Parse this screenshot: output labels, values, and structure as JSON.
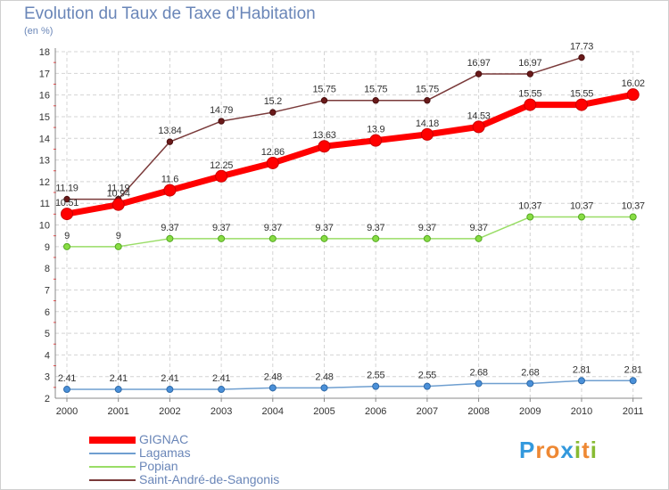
{
  "chart_data": {
    "type": "line",
    "title": "Evolution du Taux de Taxe d’Habitation",
    "subtitle": "(en %)",
    "x": [
      "2000",
      "2001",
      "2002",
      "2003",
      "2004",
      "2005",
      "2006",
      "2007",
      "2008",
      "2009",
      "2010",
      "2011"
    ],
    "ylim": [
      2,
      18
    ],
    "yticks": [
      2,
      3,
      4,
      5,
      6,
      7,
      8,
      9,
      10,
      11,
      12,
      13,
      14,
      15,
      16,
      17,
      18
    ],
    "grid": true,
    "legend_position": "bottom-left",
    "series": [
      {
        "name": "GIGNAC",
        "color": "#ff0000",
        "values": [
          10.51,
          10.94,
          11.6,
          12.25,
          12.86,
          13.63,
          13.9,
          14.18,
          14.53,
          15.55,
          15.55,
          16.02
        ],
        "labels": [
          "10.51",
          "10.94",
          "11.6",
          "12.25",
          "12.86",
          "13.63",
          "13.9",
          "14.18",
          "14.53",
          "15.55",
          "15.55",
          "16.02"
        ]
      },
      {
        "name": "Lagamas",
        "color": "#6f9fd0",
        "values": [
          2.41,
          2.41,
          2.41,
          2.41,
          2.48,
          2.48,
          2.55,
          2.55,
          2.68,
          2.68,
          2.81,
          2.81
        ],
        "labels": [
          "2.41",
          "2.41",
          "2.41",
          "2.41",
          "2.48",
          "2.48",
          "2.55",
          "2.55",
          "2.68",
          "2.68",
          "2.81",
          "2.81"
        ]
      },
      {
        "name": "Popian",
        "color": "#99dd66",
        "values": [
          9,
          9,
          9.37,
          9.37,
          9.37,
          9.37,
          9.37,
          9.37,
          9.37,
          10.37,
          10.37,
          10.37
        ],
        "labels": [
          "9",
          "9",
          "9.37",
          "9.37",
          "9.37",
          "9.37",
          "9.37",
          "9.37",
          "9.37",
          "10.37",
          "10.37",
          "10.37"
        ]
      },
      {
        "name": "Saint-André-de-Sangonis",
        "color": "#7a3a3a",
        "values": [
          11.19,
          11.19,
          13.84,
          14.79,
          15.2,
          15.75,
          15.75,
          15.75,
          16.97,
          16.97,
          17.73,
          null
        ],
        "labels": [
          "11.19",
          "11.19",
          "13.84",
          "14.79",
          "15.2",
          "15.75",
          "15.75",
          "15.75",
          "16.97",
          "16.97",
          "17.73",
          null
        ]
      }
    ]
  },
  "logo": {
    "letters": [
      "P",
      "r",
      "o",
      "x",
      "i",
      "t",
      "i"
    ],
    "colors": [
      "#3399dd",
      "#ee8833",
      "#ee8833",
      "#3399dd",
      "#88bb33",
      "#ee8833",
      "#88bb33"
    ]
  }
}
